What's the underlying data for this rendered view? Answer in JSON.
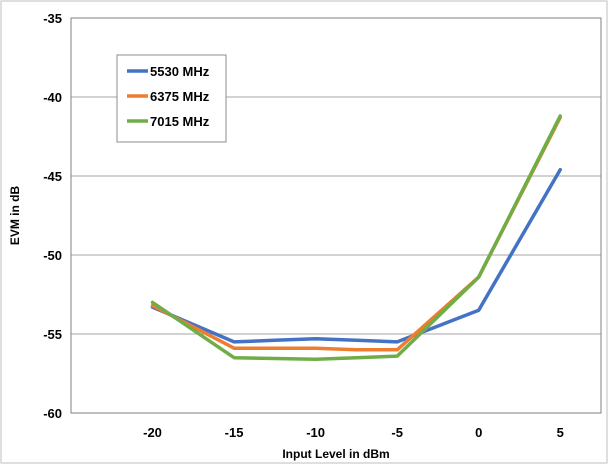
{
  "chart_data": {
    "type": "line",
    "title": "",
    "xlabel": "Input Level in dBm",
    "ylabel": "EVM in dB",
    "x": [
      -20,
      -15,
      -12.5,
      -10,
      -7.5,
      -5,
      0,
      5
    ],
    "x_ticks": [
      -20,
      -15,
      -10,
      -5,
      0,
      5
    ],
    "y_ticks": [
      -35,
      -40,
      -45,
      -50,
      -55,
      -60
    ],
    "xlim": [
      -25,
      7.5
    ],
    "ylim": [
      -60,
      -35
    ],
    "grid": "horizontal",
    "legend_position": "top-left",
    "series": [
      {
        "name": "5530 MHz",
        "color": "#4472C4",
        "values": [
          -53.3,
          -55.5,
          -55.4,
          -55.3,
          -55.4,
          -55.5,
          -53.5,
          -44.6
        ]
      },
      {
        "name": "6375 MHz",
        "color": "#ED7D31",
        "values": [
          -53.2,
          -55.9,
          -55.9,
          -55.9,
          -56.0,
          -56.0,
          -51.4,
          -41.3
        ]
      },
      {
        "name": "7015 MHz",
        "color": "#70AD47",
        "values": [
          -53.0,
          -56.5,
          -56.55,
          -56.6,
          -56.5,
          -56.4,
          -51.4,
          -41.2
        ]
      }
    ]
  }
}
